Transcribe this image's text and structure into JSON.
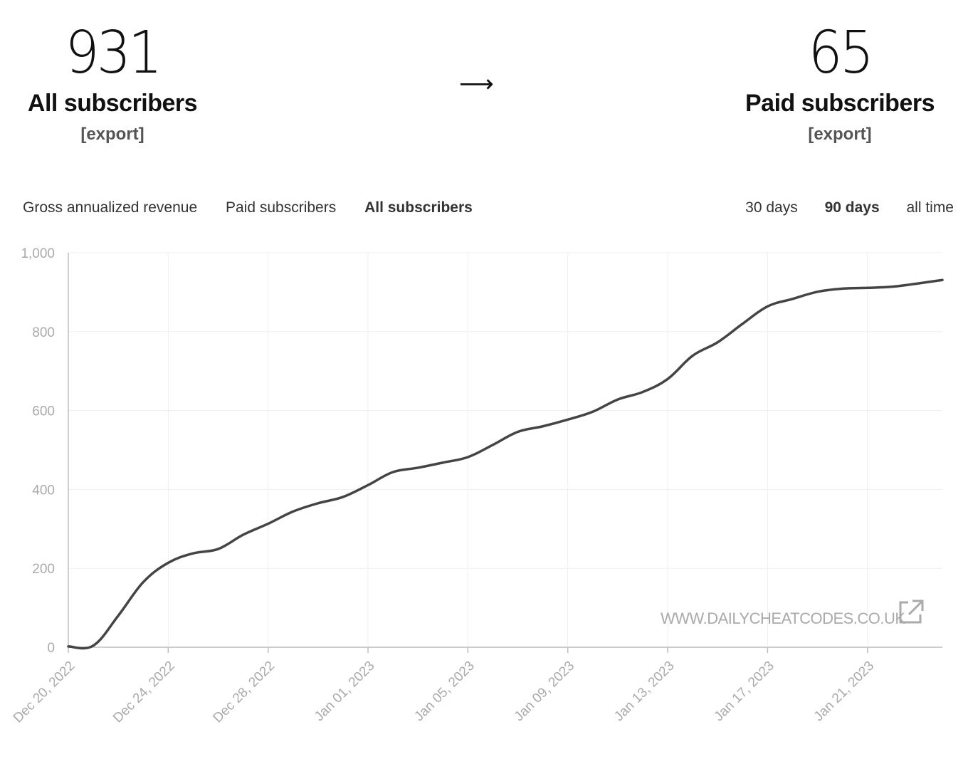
{
  "stats": {
    "all": {
      "value": "931",
      "label": "All subscribers",
      "export_label": "[export]"
    },
    "arrow": "⟶",
    "paid": {
      "value": "65",
      "label": "Paid subscribers",
      "export_label": "[export]"
    }
  },
  "tabs": [
    {
      "label": "Gross annualized revenue",
      "active": false
    },
    {
      "label": "Paid subscribers",
      "active": false
    },
    {
      "label": "All subscribers",
      "active": true
    }
  ],
  "ranges": [
    {
      "label": "30 days",
      "active": false
    },
    {
      "label": "90 days",
      "active": true
    },
    {
      "label": "all time",
      "active": false
    }
  ],
  "watermark": "WWW.DAILYCHEATCODES.CO.UK",
  "colors": {
    "line": "#444444",
    "grid": "#efefef",
    "tick": "#aaaaaa"
  },
  "chart_data": {
    "type": "line",
    "x_ticks": [
      "Dec 20, 2022",
      "Dec 24, 2022",
      "Dec 28, 2022",
      "Jan 01, 2023",
      "Jan 05, 2023",
      "Jan 09, 2023",
      "Jan 13, 2023",
      "Jan 17, 2023",
      "Jan 21, 2023"
    ],
    "y_ticks": [
      "0",
      "200",
      "400",
      "600",
      "800",
      "1,000"
    ],
    "ylim": [
      0,
      1000
    ],
    "x_start": "2022-12-20",
    "x_end": "2023-01-24",
    "grid": true,
    "series": [
      {
        "x": [
          "2022-12-20",
          "2022-12-21",
          "2022-12-22",
          "2022-12-23",
          "2022-12-24",
          "2022-12-25",
          "2022-12-26",
          "2022-12-27",
          "2022-12-28",
          "2022-12-29",
          "2022-12-30",
          "2022-12-31",
          "2023-01-01",
          "2023-01-02",
          "2023-01-03",
          "2023-01-04",
          "2023-01-05",
          "2023-01-06",
          "2023-01-07",
          "2023-01-08",
          "2023-01-09",
          "2023-01-10",
          "2023-01-11",
          "2023-01-12",
          "2023-01-13",
          "2023-01-14",
          "2023-01-15",
          "2023-01-16",
          "2023-01-17",
          "2023-01-18",
          "2023-01-19",
          "2023-01-20",
          "2023-01-21",
          "2023-01-22",
          "2023-01-23",
          "2023-01-24"
        ],
        "values": [
          2,
          4,
          80,
          165,
          214,
          238,
          249,
          285,
          313,
          344,
          365,
          381,
          411,
          444,
          455,
          468,
          482,
          513,
          546,
          560,
          577,
          597,
          628,
          647,
          680,
          739,
          773,
          820,
          864,
          883,
          901,
          909,
          911,
          914,
          922,
          931
        ]
      }
    ]
  }
}
